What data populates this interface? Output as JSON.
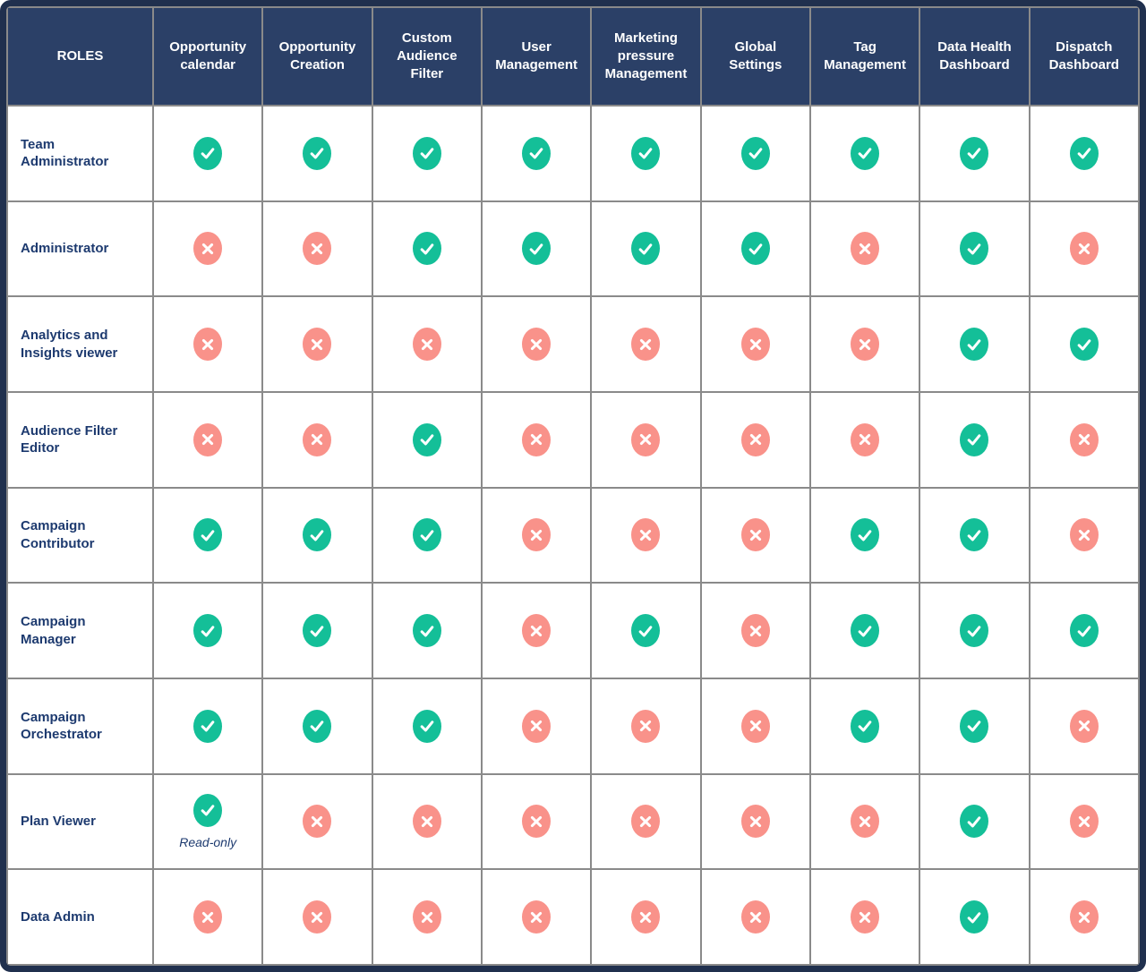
{
  "colors": {
    "header_bg": "#2b4067",
    "header_text": "#ffffff",
    "role_text": "#1d3a6f",
    "check": "#14bf98",
    "cross": "#f9928a",
    "grid": "#8a8a8a",
    "frame": "#20304e",
    "cell_bg": "#ffffff"
  },
  "table": {
    "header": {
      "roles_label": "ROLES",
      "columns": [
        "Opportunity calendar",
        "Opportunity Creation",
        "Custom Audience Filter",
        "User Management",
        "Marketing pressure Management",
        "Global Settings",
        "Tag Management",
        "Data Health Dashboard",
        "Dispatch Dashboard"
      ]
    },
    "rows": [
      {
        "role": "Team Administrator",
        "permissions": [
          "check",
          "check",
          "check",
          "check",
          "check",
          "check",
          "check",
          "check",
          "check"
        ]
      },
      {
        "role": "Administrator",
        "permissions": [
          "cross",
          "cross",
          "check",
          "check",
          "check",
          "check",
          "cross",
          "check",
          "cross"
        ]
      },
      {
        "role": "Analytics and Insights viewer",
        "permissions": [
          "cross",
          "cross",
          "cross",
          "cross",
          "cross",
          "cross",
          "cross",
          "check",
          "check"
        ]
      },
      {
        "role": "Audience Filter Editor",
        "permissions": [
          "cross",
          "cross",
          "check",
          "cross",
          "cross",
          "cross",
          "cross",
          "check",
          "cross"
        ]
      },
      {
        "role": "Campaign Contributor",
        "permissions": [
          "check",
          "check",
          "check",
          "cross",
          "cross",
          "cross",
          "check",
          "check",
          "cross"
        ]
      },
      {
        "role": "Campaign Manager",
        "permissions": [
          "check",
          "check",
          "check",
          "cross",
          "check",
          "cross",
          "check",
          "check",
          "check"
        ]
      },
      {
        "role": "Campaign Orchestrator",
        "permissions": [
          "check",
          "check",
          "check",
          "cross",
          "cross",
          "cross",
          "check",
          "check",
          "cross"
        ]
      },
      {
        "role": "Plan Viewer",
        "permissions": [
          "check",
          "cross",
          "cross",
          "cross",
          "cross",
          "cross",
          "cross",
          "check",
          "cross"
        ],
        "note": {
          "col": 0,
          "text": "Read-only"
        }
      },
      {
        "role": "Data Admin",
        "permissions": [
          "cross",
          "cross",
          "cross",
          "cross",
          "cross",
          "cross",
          "cross",
          "check",
          "cross"
        ]
      }
    ]
  }
}
